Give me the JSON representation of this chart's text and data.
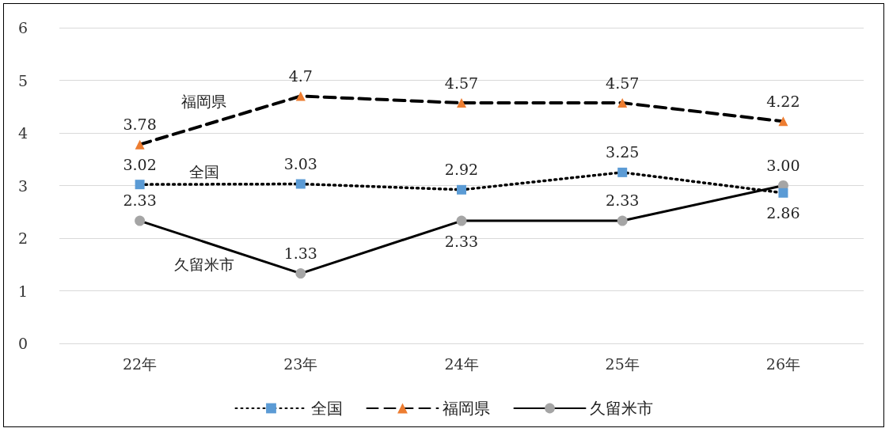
{
  "chart_data": {
    "type": "line",
    "categories": [
      "22年",
      "23年",
      "24年",
      "25年",
      "26年"
    ],
    "ylim": [
      0,
      6
    ],
    "yticks": [
      0,
      1,
      2,
      3,
      4,
      5,
      6
    ],
    "grid": "y",
    "legend": "bottom",
    "series": [
      {
        "name": "全国",
        "color": "#5b9bd5",
        "marker": "square",
        "line_style": "dotted",
        "values": [
          3.02,
          3.03,
          2.92,
          3.25,
          2.86
        ],
        "value_labels": [
          "3.02",
          "3.03",
          "2.92",
          "3.25",
          "2.86"
        ]
      },
      {
        "name": "福岡県",
        "color": "#ed7d31",
        "marker": "triangle",
        "line_style": "dashed",
        "values": [
          3.78,
          4.7,
          4.57,
          4.57,
          4.22
        ],
        "value_labels": [
          "3.78",
          "4.7",
          "4.57",
          "4.57",
          "4.22"
        ]
      },
      {
        "name": "久留米市",
        "color": "#a5a5a5",
        "marker": "circle",
        "line_style": "solid",
        "values": [
          2.33,
          1.33,
          2.33,
          2.33,
          3.0
        ],
        "value_labels": [
          "2.33",
          "1.33",
          "2.33",
          "2.33",
          "3.00"
        ]
      }
    ],
    "annotations": [
      "福岡県",
      "全国",
      "久留米市"
    ]
  }
}
